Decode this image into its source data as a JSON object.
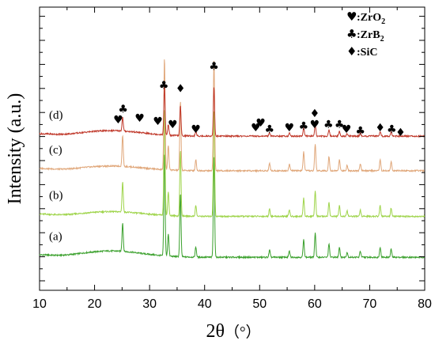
{
  "chart_data": {
    "type": "line",
    "xlabel_main": "2θ",
    "xlabel_unit": "（°）",
    "ylabel": "Intensity (a.u.)",
    "xlim": [
      10,
      80
    ],
    "xticks": [
      10,
      20,
      30,
      40,
      50,
      60,
      70,
      80
    ],
    "y_ticks_shown": false,
    "grid": false,
    "legend_position": "top-right",
    "legend": [
      {
        "symbol": "♥",
        "label_main": ":ZrO",
        "label_sub": "2",
        "phase": "ZrO2"
      },
      {
        "symbol": "♣",
        "label_main": ":ZrB",
        "label_sub": "2",
        "phase": "ZrB2"
      },
      {
        "symbol": "♦",
        "label_main": ":SiC",
        "label_sub": "",
        "phase": "SiC"
      }
    ],
    "peaks": [
      {
        "x": 25.1,
        "h": 0.28
      },
      {
        "x": 32.7,
        "h": 1.0
      },
      {
        "x": 33.4,
        "h": 0.22
      },
      {
        "x": 35.6,
        "h": 0.62
      },
      {
        "x": 38.4,
        "h": 0.1
      },
      {
        "x": 41.7,
        "h": 1.0
      },
      {
        "x": 51.8,
        "h": 0.07
      },
      {
        "x": 55.4,
        "h": 0.06
      },
      {
        "x": 58.0,
        "h": 0.17
      },
      {
        "x": 60.1,
        "h": 0.24
      },
      {
        "x": 62.6,
        "h": 0.13
      },
      {
        "x": 64.5,
        "h": 0.1
      },
      {
        "x": 65.9,
        "h": 0.05
      },
      {
        "x": 68.3,
        "h": 0.06
      },
      {
        "x": 71.9,
        "h": 0.1
      },
      {
        "x": 73.9,
        "h": 0.08
      }
    ],
    "series": [
      {
        "name": "(a)",
        "color": "#3aa02c",
        "baseline_y": 21,
        "peak_scale": 65,
        "hump": 4
      },
      {
        "name": "(b)",
        "color": "#9ed44a",
        "baseline_y": 47,
        "peak_scale": 68,
        "hump": 3
      },
      {
        "name": "(c)",
        "color": "#e0a77a",
        "baseline_y": 76,
        "peak_scale": 71,
        "hump": 3
      },
      {
        "name": "(d)",
        "color": "#c0392b",
        "baseline_y": 98,
        "peak_scale": 31,
        "hump": 3.5
      }
    ],
    "phase_markers": [
      {
        "x": 24.3,
        "phase": "ZrO2",
        "symbol": "♥",
        "y": 106
      },
      {
        "x": 25.2,
        "phase": "ZrB2",
        "symbol": "♣",
        "y": 113
      },
      {
        "x": 28.2,
        "phase": "ZrO2",
        "symbol": "♥",
        "y": 107
      },
      {
        "x": 31.5,
        "phase": "ZrO2",
        "symbol": "♥",
        "y": 105
      },
      {
        "x": 32.6,
        "phase": "ZrB2",
        "symbol": "♣",
        "y": 128
      },
      {
        "x": 34.2,
        "phase": "ZrO2",
        "symbol": "♥",
        "y": 103
      },
      {
        "x": 35.6,
        "phase": "SiC",
        "symbol": "♦",
        "y": 126
      },
      {
        "x": 38.4,
        "phase": "ZrO2",
        "symbol": "♥",
        "y": 100
      },
      {
        "x": 41.7,
        "phase": "ZrB2",
        "symbol": "♣",
        "y": 140
      },
      {
        "x": 49.3,
        "phase": "ZrO2",
        "symbol": "♥",
        "y": 101
      },
      {
        "x": 50.2,
        "phase": "ZrO2",
        "symbol": "♥",
        "y": 104
      },
      {
        "x": 51.8,
        "phase": "ZrB2",
        "symbol": "♣",
        "y": 100
      },
      {
        "x": 55.4,
        "phase": "ZrO2",
        "symbol": "♥",
        "y": 101
      },
      {
        "x": 58.0,
        "phase": "ZrB2",
        "symbol": "♣",
        "y": 102
      },
      {
        "x": 60.0,
        "phase": "SiC",
        "symbol": "♦",
        "y": 110
      },
      {
        "x": 60.0,
        "phase": "ZrO2",
        "symbol": "♥",
        "y": 103
      },
      {
        "x": 62.5,
        "phase": "ZrB2",
        "symbol": "♣",
        "y": 103
      },
      {
        "x": 64.5,
        "phase": "ZrB2",
        "symbol": "♣",
        "y": 103
      },
      {
        "x": 65.8,
        "phase": "ZrO2",
        "symbol": "♥",
        "y": 100
      },
      {
        "x": 68.3,
        "phase": "ZrB2",
        "symbol": "♣",
        "y": 99
      },
      {
        "x": 71.9,
        "phase": "SiC",
        "symbol": "♦",
        "y": 101
      },
      {
        "x": 74.0,
        "phase": "ZrB2",
        "symbol": "♣",
        "y": 100
      },
      {
        "x": 75.6,
        "phase": "SiC",
        "symbol": "♦",
        "y": 98
      }
    ]
  }
}
